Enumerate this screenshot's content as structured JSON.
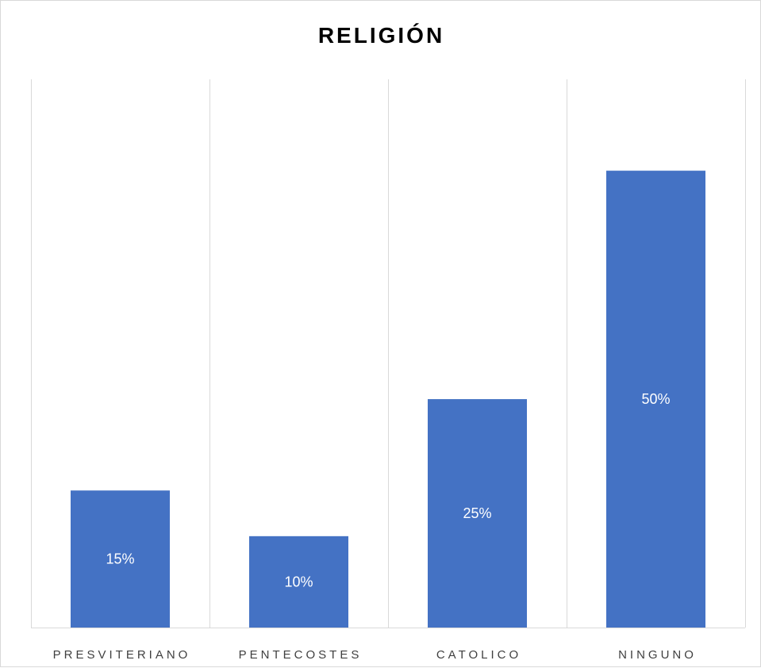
{
  "chart_data": {
    "type": "bar",
    "title": "RELIGIÓN",
    "categories": [
      "PRESVITERIANO",
      "PENTECOSTES",
      "CATOLICO",
      "NINGUNO"
    ],
    "values": [
      15,
      10,
      25,
      50
    ],
    "data_labels": [
      "15%",
      "10%",
      "25%",
      "50%"
    ],
    "value_unit": "%",
    "ylim": [
      0,
      60
    ],
    "grid": "vertical category separators",
    "legend": "none",
    "colors": {
      "bar": "#4472C4",
      "grid": "#d9d9d9",
      "axis_text": "#404040"
    }
  }
}
